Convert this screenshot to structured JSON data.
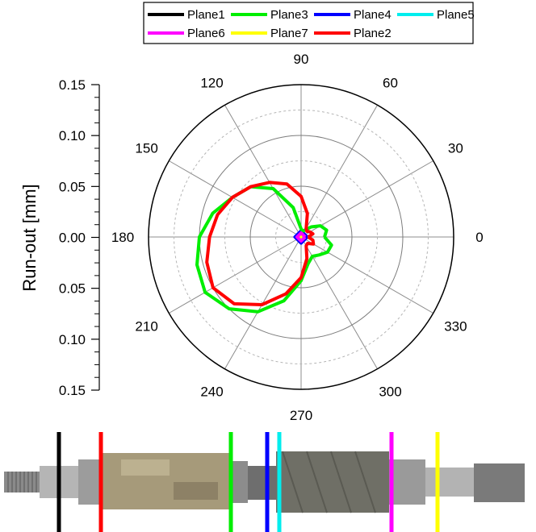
{
  "chart_data": {
    "type": "line",
    "subtype": "polar",
    "title": "",
    "ylabel": "Run-out [mm]",
    "radial_range": [
      0,
      0.15
    ],
    "radial_scale_ticks": [
      "0.15",
      "0.10",
      "0.05",
      "0.00",
      "0.05",
      "0.10",
      "0.15"
    ],
    "angle_ticks": [
      "0",
      "30",
      "60",
      "90",
      "120",
      "150",
      "180",
      "210",
      "240",
      "270",
      "300",
      "330"
    ],
    "grid": true,
    "legend_position": "top",
    "series": [
      {
        "name": "Plane1",
        "color": "#000000",
        "theta": [
          0,
          90,
          180,
          270,
          360
        ],
        "r": [
          0.002,
          0.002,
          0.002,
          0.002,
          0.002
        ]
      },
      {
        "name": "Plane3",
        "color": "#00ee00",
        "theta": [
          0,
          15,
          30,
          45,
          60,
          75,
          90,
          105,
          120,
          135,
          150,
          165,
          180,
          195,
          210,
          225,
          240,
          255,
          270,
          285,
          300,
          315,
          330,
          345,
          360
        ],
        "r": [
          0.023,
          0.026,
          0.022,
          0.014,
          0.008,
          0.006,
          0.008,
          0.03,
          0.055,
          0.07,
          0.078,
          0.09,
          0.1,
          0.106,
          0.109,
          0.1,
          0.085,
          0.065,
          0.043,
          0.027,
          0.022,
          0.025,
          0.03,
          0.031,
          0.023
        ]
      },
      {
        "name": "Plane4",
        "color": "#0000ff",
        "theta": [
          0,
          90,
          180,
          270,
          360
        ],
        "r": [
          0.006,
          0.006,
          0.006,
          0.006,
          0.006
        ]
      },
      {
        "name": "Plane5",
        "color": "#00eeee",
        "theta": [
          0,
          90,
          180,
          270,
          360
        ],
        "r": [
          0.002,
          0.002,
          0.002,
          0.002,
          0.002
        ]
      },
      {
        "name": "Plane6",
        "color": "#ff00ff",
        "theta": [
          0,
          90,
          180,
          270,
          360
        ],
        "r": [
          0.004,
          0.004,
          0.004,
          0.004,
          0.004
        ]
      },
      {
        "name": "Plane7",
        "color": "#ffff00",
        "theta": [
          0,
          90,
          180,
          270,
          360
        ],
        "r": [
          0.001,
          0.001,
          0.001,
          0.001,
          0.001
        ]
      },
      {
        "name": "Plane2",
        "color": "#ff0000",
        "theta": [
          0,
          15,
          30,
          45,
          60,
          75,
          90,
          105,
          120,
          135,
          150,
          165,
          180,
          195,
          210,
          225,
          240,
          255,
          270,
          285,
          300,
          315,
          330,
          345,
          360
        ],
        "r": [
          0.007,
          0.012,
          0.01,
          0.008,
          0.01,
          0.024,
          0.04,
          0.054,
          0.062,
          0.07,
          0.078,
          0.085,
          0.09,
          0.096,
          0.1,
          0.093,
          0.077,
          0.058,
          0.04,
          0.022,
          0.01,
          0.009,
          0.014,
          0.012,
          0.007
        ]
      }
    ]
  },
  "legend_order": [
    "Plane1",
    "Plane3",
    "Plane4",
    "Plane5",
    "Plane6",
    "Plane7",
    "Plane2"
  ],
  "shaft_photo": {
    "plane_markers": [
      {
        "name": "Plane1",
        "color": "#000000"
      },
      {
        "name": "Plane2",
        "color": "#ff0000"
      },
      {
        "name": "Plane3",
        "color": "#00ee00"
      },
      {
        "name": "Plane4",
        "color": "#0000ff"
      },
      {
        "name": "Plane5",
        "color": "#00eeee"
      },
      {
        "name": "Plane6",
        "color": "#ff00ff"
      },
      {
        "name": "Plane7",
        "color": "#ffff00"
      }
    ]
  }
}
